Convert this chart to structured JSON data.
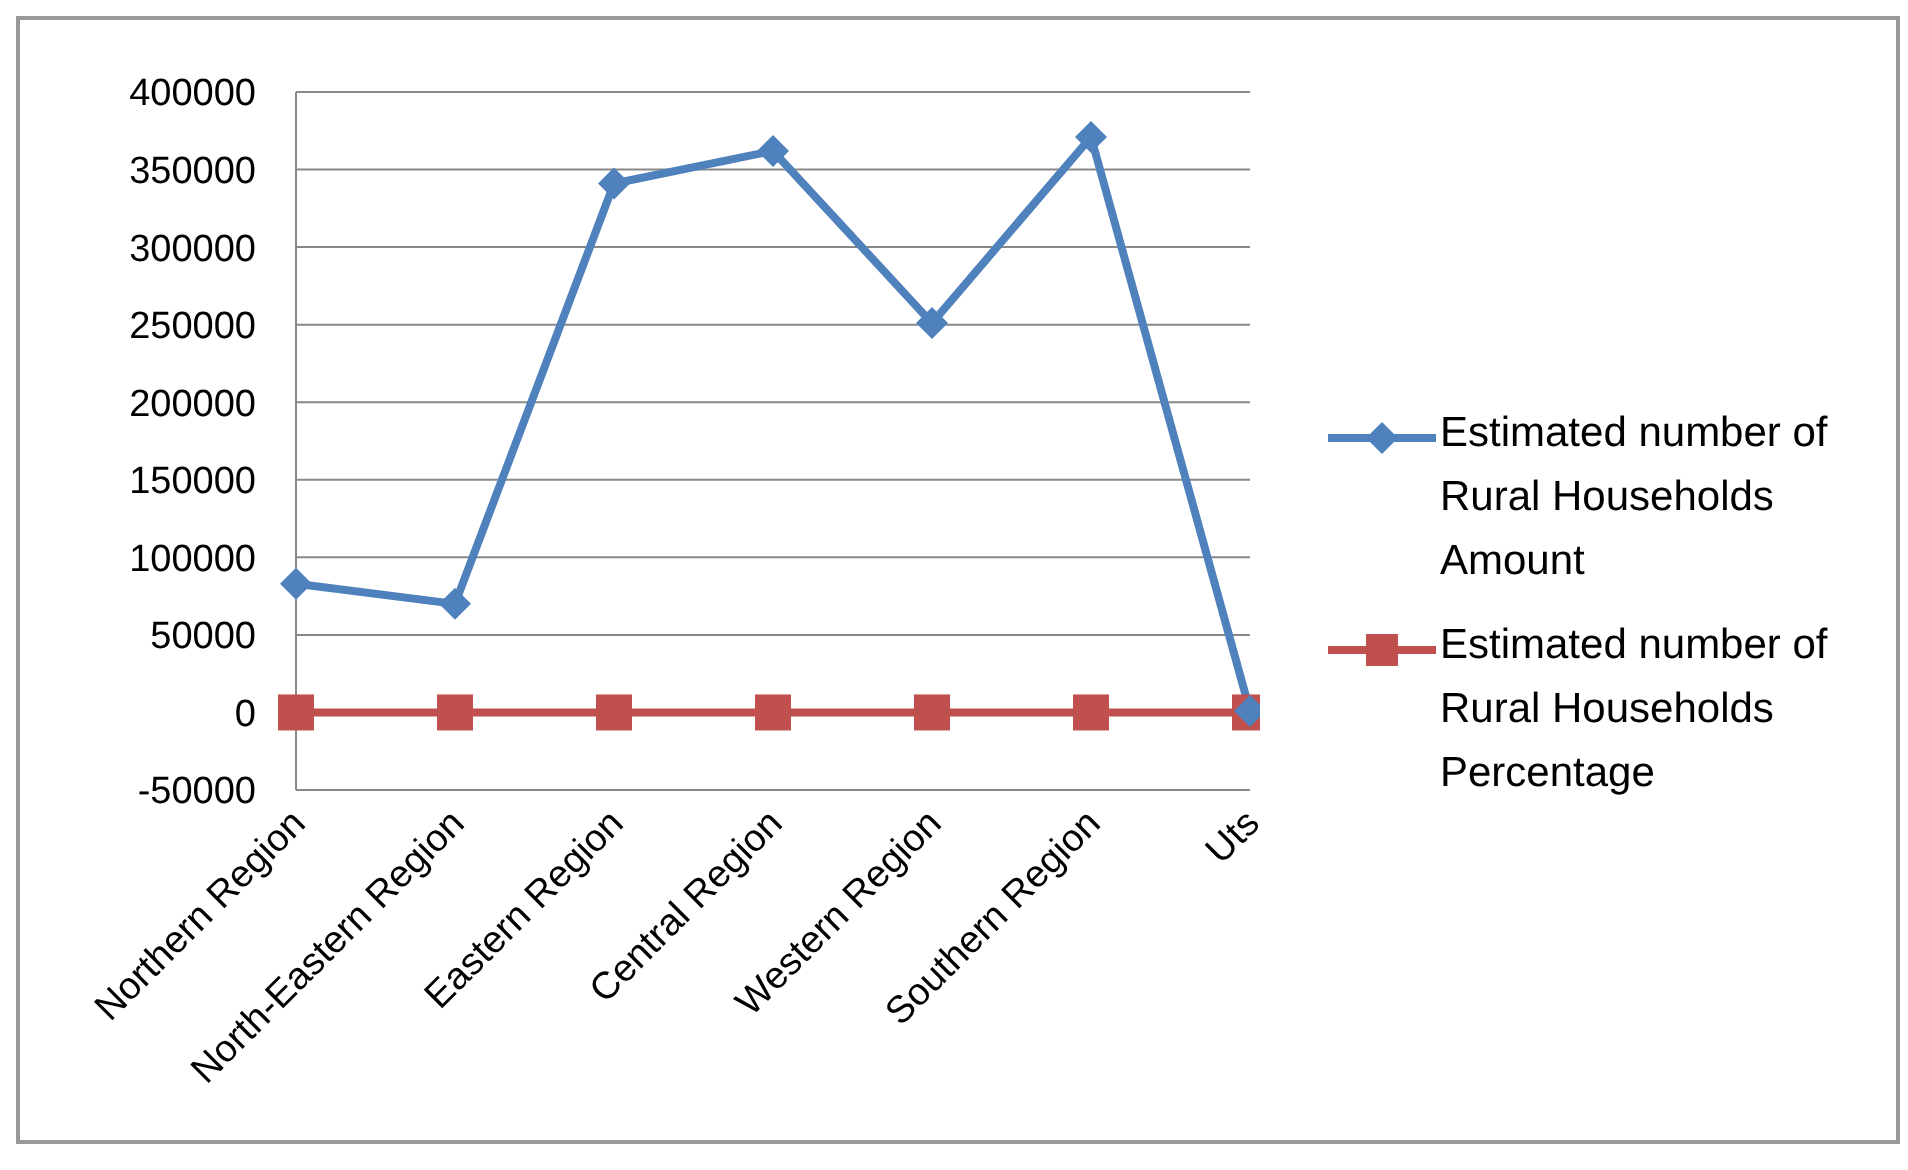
{
  "chart_data": {
    "type": "line",
    "categories": [
      "Northern Region",
      "North-Eastern Region",
      "Eastern Region",
      "Central Region",
      "Western Region",
      "Southern Region",
      "Uts"
    ],
    "series": [
      {
        "name": "Estimated number of Rural Households Amount",
        "color": "#4f81bd",
        "marker": "diamond",
        "values": [
          83000,
          70000,
          341000,
          362000,
          251000,
          371000,
          1000
        ]
      },
      {
        "name": "Estimated number of Rural Households Percentage",
        "color": "#c0504d",
        "marker": "square",
        "values": [
          0,
          0,
          0,
          0,
          0,
          0,
          0
        ]
      }
    ],
    "ylim": [
      -50000,
      400000
    ],
    "yticks": [
      -50000,
      0,
      50000,
      100000,
      150000,
      200000,
      250000,
      300000,
      350000,
      400000
    ],
    "grid": "y",
    "legend": "right"
  }
}
